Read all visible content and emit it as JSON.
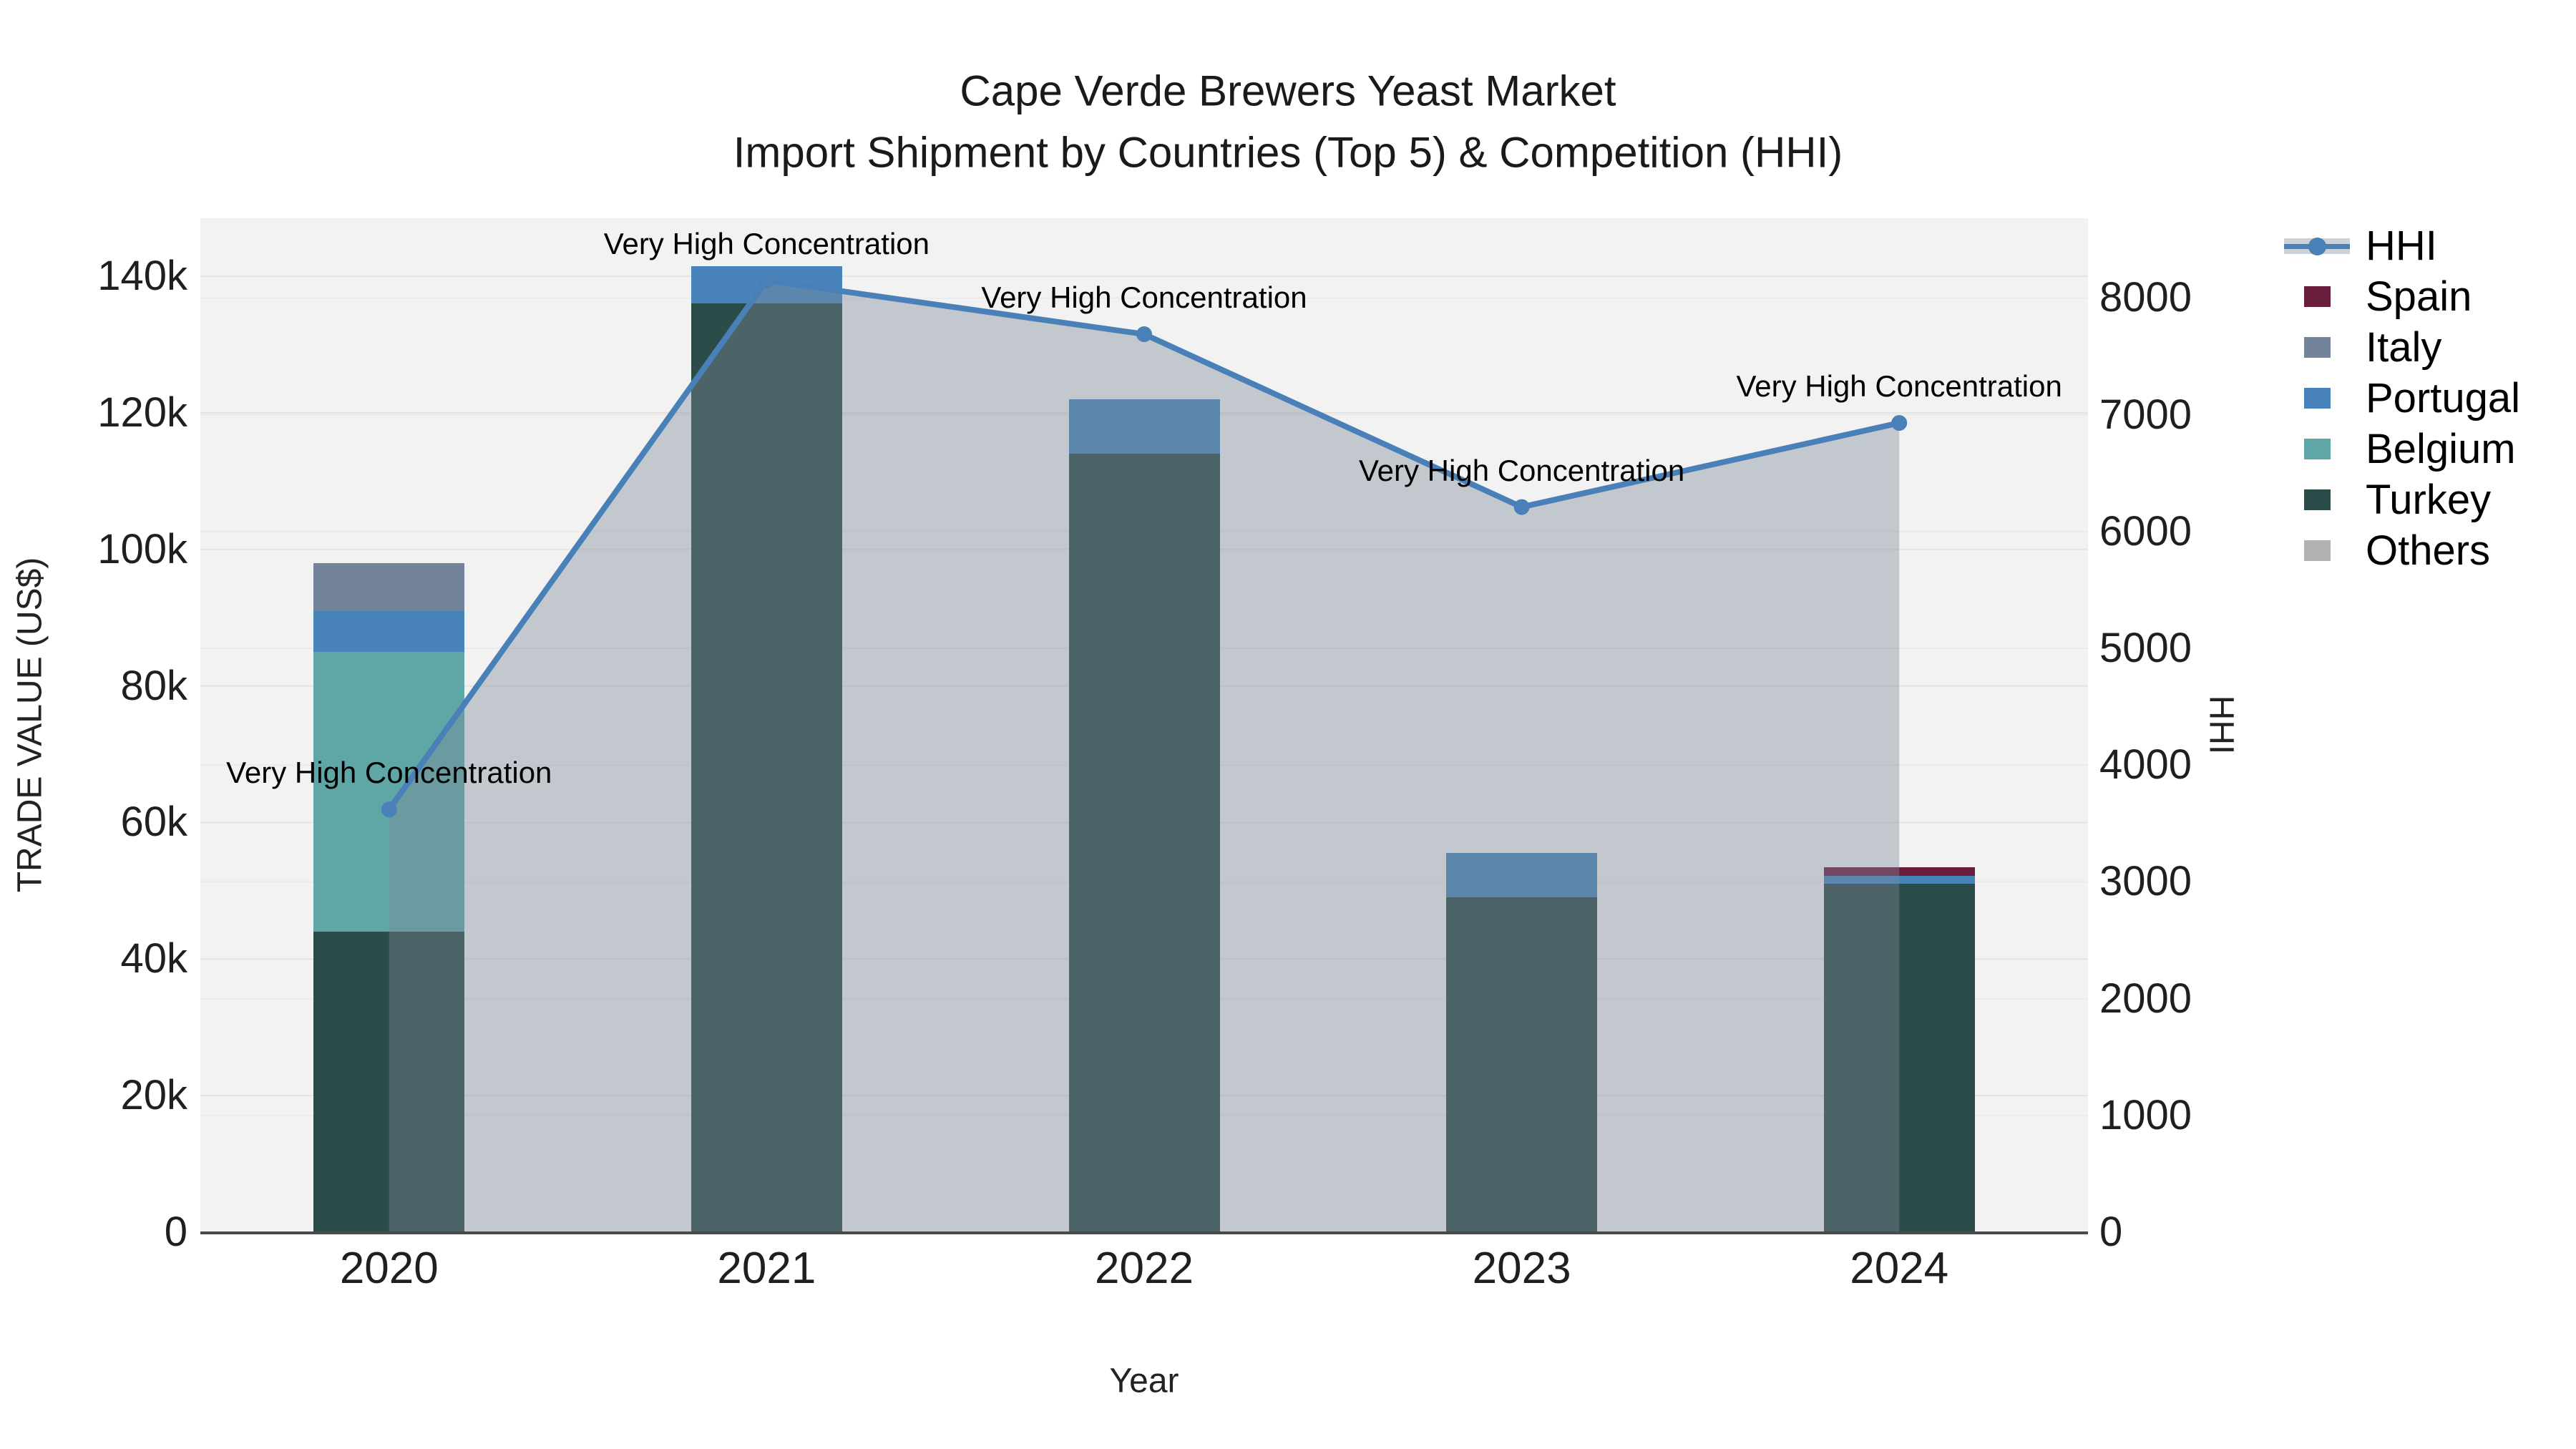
{
  "title": {
    "line1": "Cape Verde Brewers Yeast Market",
    "line2": "Import Shipment by Countries (Top 5) & Competition (HHI)"
  },
  "axes": {
    "left": {
      "label": "TRADE VALUE (US$)",
      "ticks": [
        {
          "v": 0,
          "label": "0"
        },
        {
          "v": 20000,
          "label": "20k"
        },
        {
          "v": 40000,
          "label": "40k"
        },
        {
          "v": 60000,
          "label": "60k"
        },
        {
          "v": 80000,
          "label": "80k"
        },
        {
          "v": 100000,
          "label": "100k"
        },
        {
          "v": 120000,
          "label": "120k"
        },
        {
          "v": 140000,
          "label": "140k"
        }
      ]
    },
    "right": {
      "label": "HHI",
      "ticks": [
        {
          "v": 0,
          "label": "0"
        },
        {
          "v": 1000,
          "label": "1000"
        },
        {
          "v": 2000,
          "label": "2000"
        },
        {
          "v": 3000,
          "label": "3000"
        },
        {
          "v": 4000,
          "label": "4000"
        },
        {
          "v": 5000,
          "label": "5000"
        },
        {
          "v": 6000,
          "label": "6000"
        },
        {
          "v": 7000,
          "label": "7000"
        },
        {
          "v": 8000,
          "label": "8000"
        }
      ]
    },
    "x": {
      "label": "Year",
      "categories": [
        "2020",
        "2021",
        "2022",
        "2023",
        "2024"
      ]
    }
  },
  "legend": {
    "items": [
      {
        "label": "HHI",
        "color": "#4a80b8",
        "band": "#cbd1d8",
        "type": "line"
      },
      {
        "label": "Spain",
        "color": "#6b1d3e",
        "type": "patch"
      },
      {
        "label": "Italy",
        "color": "#738399",
        "type": "patch"
      },
      {
        "label": "Portugal",
        "color": "#4884ba",
        "type": "patch"
      },
      {
        "label": "Belgium",
        "color": "#5fa7a7",
        "type": "patch"
      },
      {
        "label": "Turkey",
        "color": "#2c4c49",
        "type": "patch"
      },
      {
        "label": "Others",
        "color": "#b2b2b2",
        "type": "patch"
      }
    ]
  },
  "chart_data": {
    "type": "bar+line",
    "title": "Cape Verde Brewers Yeast Market — Import Shipment by Countries (Top 5) & Competition (HHI)",
    "categories": [
      "2020",
      "2021",
      "2022",
      "2023",
      "2024"
    ],
    "stack_order": [
      "Turkey",
      "Belgium",
      "Portugal",
      "Italy",
      "Spain",
      "Others"
    ],
    "series": [
      {
        "name": "Turkey",
        "color": "#2c4c49",
        "values": [
          44000,
          136000,
          114000,
          49000,
          51000
        ]
      },
      {
        "name": "Belgium",
        "color": "#5fa7a7",
        "values": [
          41000,
          0,
          0,
          0,
          0
        ]
      },
      {
        "name": "Portugal",
        "color": "#4884ba",
        "values": [
          6000,
          5500,
          8000,
          6500,
          1200
        ]
      },
      {
        "name": "Italy",
        "color": "#738399",
        "values": [
          7000,
          0,
          0,
          0,
          0
        ]
      },
      {
        "name": "Spain",
        "color": "#6b1d3e",
        "values": [
          0,
          0,
          0,
          0,
          1200
        ]
      },
      {
        "name": "Others",
        "color": "#b2b2b2",
        "values": [
          0,
          0,
          0,
          0,
          0
        ]
      }
    ],
    "bar_totals": [
      98000,
      141500,
      122000,
      55500,
      53400
    ],
    "hhi": {
      "name": "HHI",
      "values": [
        3620,
        8150,
        7690,
        6210,
        6930
      ],
      "line_color": "#4a80b8",
      "fill_color": "rgba(125,138,152,0.40)"
    },
    "annotations": [
      "Very High Concentration",
      "Very High Concentration",
      "Very High Concentration",
      "Very High Concentration",
      "Very High Concentration"
    ],
    "xlabel": "Year",
    "ylabel": "TRADE VALUE (US$)",
    "y2label": "HHI",
    "ylim": [
      0,
      148500
    ],
    "y2lim": [
      0,
      8683
    ],
    "grid": true,
    "legend_position": "right",
    "plot_bg": "#f2f2f2",
    "grid_color_left": "#e3e3e3",
    "grid_color_right": "#eaeaea",
    "axis_line_color": "#4a4a4a"
  }
}
